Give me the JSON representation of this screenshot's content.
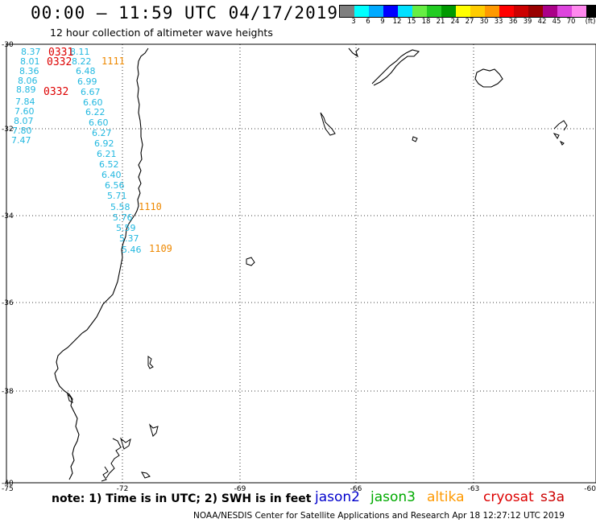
{
  "header": {
    "title": "00:00 – 11:59 UTC 04/17/2019",
    "subtitle": "12 hour collection of altimeter wave heights"
  },
  "legend": {
    "colors": [
      "#7f7f7f",
      "#00ffff",
      "#00aaff",
      "#0000ff",
      "#00e0ff",
      "#66ee44",
      "#22cc22",
      "#009900",
      "#ffff00",
      "#ffcc00",
      "#ff9900",
      "#ff0000",
      "#cc0000",
      "#990000",
      "#aa0088",
      "#dd44dd",
      "#ff88ee",
      "#000000"
    ],
    "labels": [
      "3",
      "6",
      "9",
      "12",
      "15",
      "18",
      "21",
      "24",
      "27",
      "30",
      "33",
      "36",
      "39",
      "42",
      "45",
      "70",
      "(ft)"
    ]
  },
  "axes": {
    "lat_labels": [
      "-30",
      "-32",
      "-34",
      "-36",
      "-38",
      "-40"
    ],
    "lon_labels": [
      "-75",
      "-72",
      "-69",
      "-66",
      "-63",
      "-60"
    ]
  },
  "wave_heights": {
    "column_left": [
      "8.37",
      "8.01",
      "8.36",
      "8.06",
      "8.89",
      "7.84",
      "7.60",
      "8.07",
      "7.80",
      "7.47"
    ],
    "column_right": [
      "8.11",
      "8.22",
      "6.48",
      "6.99",
      "6.67",
      "6.60",
      "6.22",
      "6.60",
      "6.27",
      "6.92",
      "6.21",
      "6.52",
      "6.40",
      "6.56",
      "5.71",
      "5.58",
      "5.76",
      "5.59",
      "5.37",
      "5.46"
    ],
    "times_red": [
      "0331",
      "0332",
      "0332"
    ],
    "times_orange": [
      "1111",
      "1110",
      "1109"
    ]
  },
  "colors": {
    "wave_text": "#22b8e0",
    "cryosat_time": "#dd0000",
    "altika_time": "#ee8800"
  },
  "footer": {
    "note": "note: 1) Time is in UTC; 2) SWH is in feet",
    "satellites": [
      {
        "name": "jason2",
        "color": "#0000cc"
      },
      {
        "name": "jason3",
        "color": "#00aa00"
      },
      {
        "name": "altika",
        "color": "#ff9900"
      },
      {
        "name": "cryosat",
        "color": "#dd0000"
      },
      {
        "name": "s3a",
        "color": "#cc0000"
      }
    ],
    "credit": "NOAA/NESDIS Center for Satellite Applications and Research   Apr 18 12:27:12 UTC 2019"
  }
}
